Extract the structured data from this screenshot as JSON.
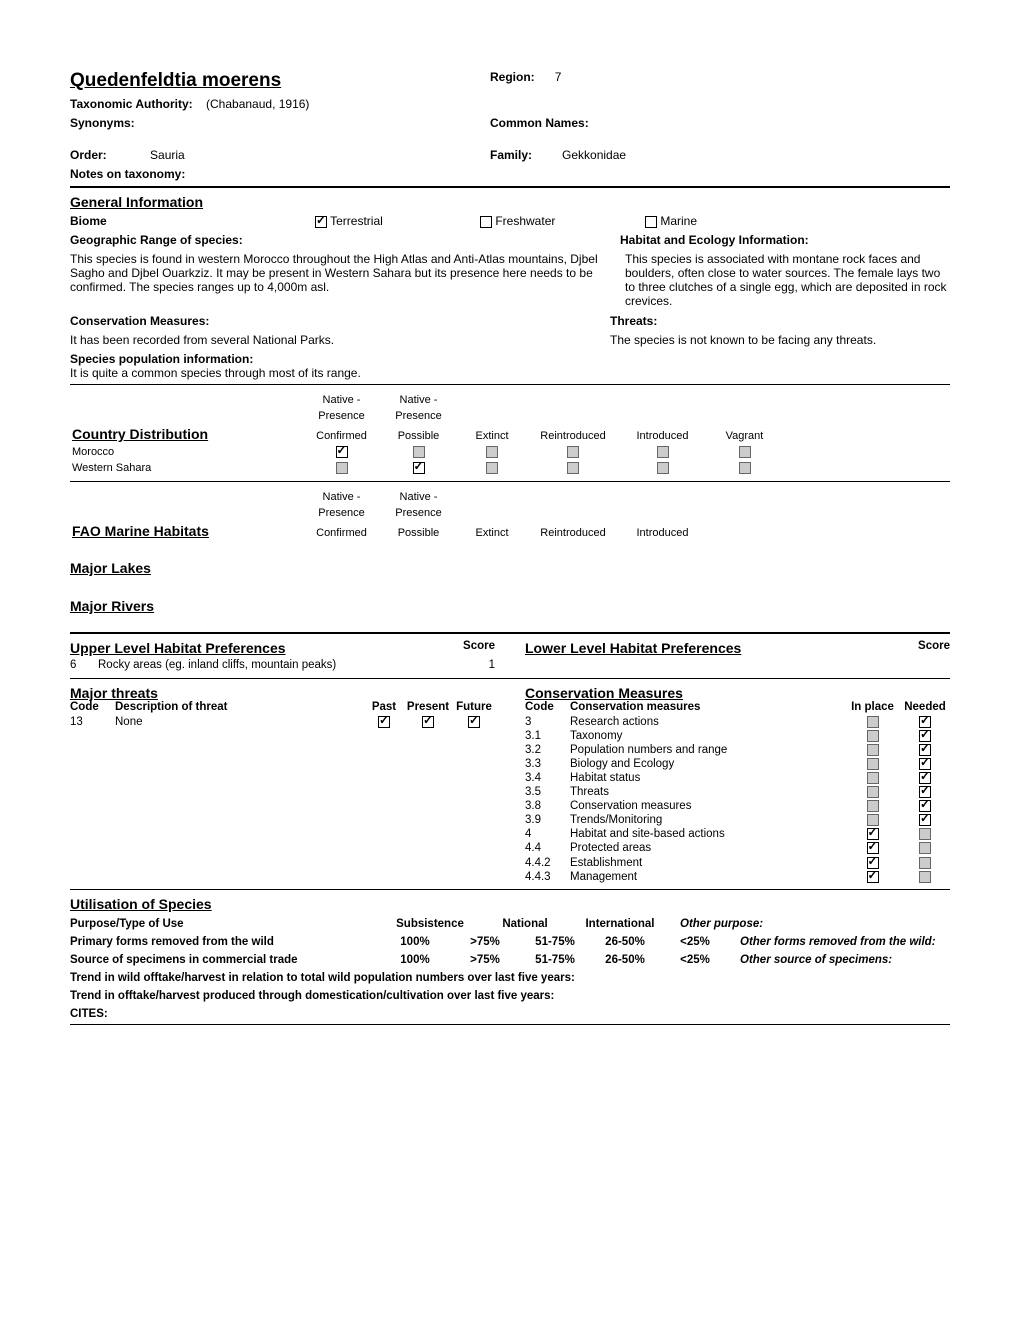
{
  "header": {
    "species_name": "Quedenfeldtia moerens",
    "region_label": "Region:",
    "region_value": "7",
    "tax_auth_label": "Taxonomic Authority:",
    "tax_auth_value": "(Chabanaud, 1916)",
    "synonyms_label": "Synonyms:",
    "common_names_label": "Common Names:",
    "order_label": "Order:",
    "order_value": "Sauria",
    "family_label": "Family:",
    "family_value": "Gekkonidae",
    "notes_label": "Notes on taxonomy:"
  },
  "general": {
    "heading": "General Information",
    "biome_label": "Biome",
    "terrestrial": "Terrestrial",
    "freshwater": "Freshwater",
    "marine": "Marine",
    "geo_label": "Geographic Range of species:",
    "geo_text": "This species is found in western Morocco throughout the High Atlas and Anti-Atlas mountains, Djbel Sagho and Djbel Ouarkziz. It may be present in Western Sahara but its presence here needs to be confirmed. The species ranges up to 4,000m asl.",
    "habitat_label": "Habitat and Ecology Information:",
    "habitat_text": "This species is associated with montane rock faces and boulders, often close to water sources. The female lays two to three clutches of a single egg, which are deposited in rock crevices.",
    "cons_label": "Conservation Measures:",
    "cons_text": "It has been recorded from several National Parks.",
    "threats_label": "Threats:",
    "threats_text": "The species is not known to be facing any threats.",
    "pop_label": "Species population information:",
    "pop_text": "It is quite a common species through most of its range."
  },
  "country_dist": {
    "heading": "Country Distribution",
    "fao_heading": "FAO Marine Habitats",
    "lakes_heading": "Major Lakes",
    "rivers_heading": "Major Rivers",
    "cols": {
      "c1a": "Native -",
      "c1b": "Presence",
      "c1c": "Confirmed",
      "c2a": "Native -",
      "c2b": "Presence",
      "c2c": "Possible",
      "c3": "Extinct",
      "c4": "Reintroduced",
      "c5": "Introduced",
      "c6": "Vagrant"
    },
    "rows": [
      {
        "name": "Morocco",
        "c1": "checked",
        "c2": "grey",
        "c3": "grey",
        "c4": "grey",
        "c5": "grey",
        "c6": "grey"
      },
      {
        "name": "Western Sahara",
        "c1": "grey",
        "c2": "checked",
        "c3": "grey",
        "c4": "grey",
        "c5": "grey",
        "c6": "grey"
      }
    ]
  },
  "habitat_prefs": {
    "upper_heading": "Upper Level Habitat Preferences",
    "lower_heading": "Lower Level Habitat Preferences",
    "score_label": "Score",
    "upper_rows": [
      {
        "code": "6",
        "desc": "Rocky areas (eg. inland cliffs, mountain peaks)",
        "score": "1"
      }
    ]
  },
  "threats_section": {
    "heading": "Major threats",
    "code_label": "Code",
    "desc_label": "Description of threat",
    "past": "Past",
    "present": "Present",
    "future": "Future",
    "rows": [
      {
        "code": "13",
        "desc": "None",
        "past": true,
        "present": true,
        "future": true
      }
    ]
  },
  "cons_section": {
    "heading": "Conservation Measures",
    "code_label": "Code",
    "desc_label": "Conservation measures",
    "inplace": "In place",
    "needed": "Needed",
    "rows": [
      {
        "code": "3",
        "desc": "Research actions",
        "in": "grey",
        "need": "checked"
      },
      {
        "code": "3.1",
        "desc": "Taxonomy",
        "in": "grey",
        "need": "checked"
      },
      {
        "code": "3.2",
        "desc": "Population numbers and range",
        "in": "grey",
        "need": "checked"
      },
      {
        "code": "3.3",
        "desc": "Biology and Ecology",
        "in": "grey",
        "need": "checked"
      },
      {
        "code": "3.4",
        "desc": "Habitat status",
        "in": "grey",
        "need": "checked"
      },
      {
        "code": "3.5",
        "desc": "Threats",
        "in": "grey",
        "need": "checked"
      },
      {
        "code": "3.8",
        "desc": "Conservation measures",
        "in": "grey",
        "need": "checked"
      },
      {
        "code": "3.9",
        "desc": "Trends/Monitoring",
        "in": "grey",
        "need": "checked"
      },
      {
        "code": "4",
        "desc": "Habitat and site-based actions",
        "in": "checked",
        "need": "grey"
      },
      {
        "code": "4.4",
        "desc": "Protected areas",
        "in": "checked",
        "need": "grey"
      },
      {
        "code": "4.4.2",
        "desc": "Establishment",
        "in": "checked",
        "need": "grey"
      },
      {
        "code": "4.4.3",
        "desc": "Management",
        "in": "checked",
        "need": "grey"
      }
    ]
  },
  "util": {
    "heading": "Utilisation of Species",
    "purpose": "Purpose/Type of Use",
    "purpose_cols": [
      "Subsistence",
      "National",
      "International"
    ],
    "purpose_other": "Other purpose:",
    "primary": "Primary forms removed from the wild",
    "pct_cols": [
      "100%",
      ">75%",
      "51-75%",
      "26-50%",
      "<25%"
    ],
    "primary_other": "Other forms removed from the wild:",
    "source": "Source of specimens in commercial trade",
    "source_other": "Other source of specimens:",
    "trend1": "Trend in wild offtake/harvest in relation to total wild population numbers over last five years:",
    "trend2": "Trend in offtake/harvest produced through domestication/cultivation over last five years:",
    "cites": "CITES:"
  }
}
